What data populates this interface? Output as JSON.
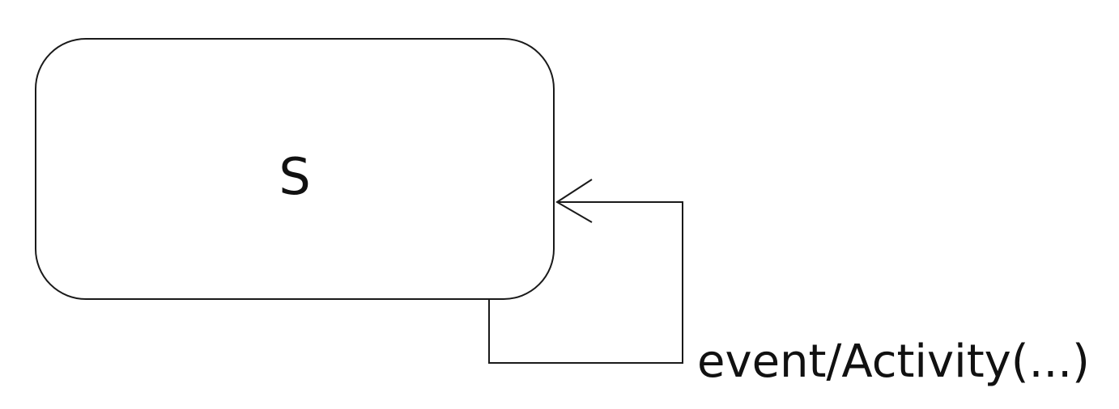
{
  "diagram": {
    "state": {
      "name": "S"
    },
    "transition": {
      "label": "event/Activity(...)"
    },
    "colors": {
      "stroke": "#1a1a1a",
      "text": "#111111",
      "background": "#ffffff"
    }
  }
}
